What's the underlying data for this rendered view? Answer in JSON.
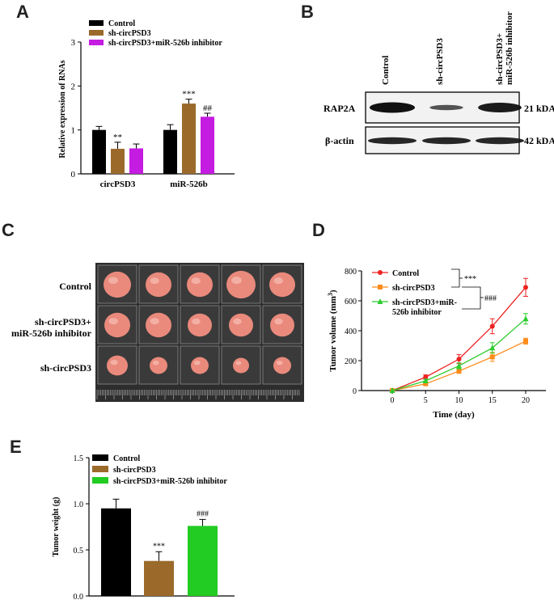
{
  "panels": {
    "a": "A",
    "b": "B",
    "c": "C",
    "d": "D",
    "e": "E"
  },
  "colors": {
    "control": "#000000",
    "sh": "#9b6a2b",
    "inhib_a": "#c41ce0",
    "inhib_e": "#22cc22",
    "line_control": "#ee2222",
    "line_sh": "#ff8c1a",
    "line_inhib": "#2ecc2e"
  },
  "blot": {
    "lanes": [
      "Control",
      "sh-circPSD3",
      "sh-circPSD3+\nmiR-526b inhibitor"
    ],
    "rows": [
      {
        "label": "RAP2A",
        "size": "21 kDA"
      },
      {
        "label": "β-actin",
        "size": "42 kDA"
      }
    ],
    "intensity_rap2a": [
      1.0,
      0.35,
      0.9
    ],
    "intensity_actin": [
      0.85,
      0.85,
      0.85
    ]
  },
  "photo": {
    "rows": [
      "Control",
      "sh-circPSD3+\nmiR-526b inhibitor",
      "sh-circPSD3"
    ],
    "tumor_counts": [
      5,
      5,
      5
    ]
  },
  "chart_data": [
    {
      "id": "A",
      "type": "bar",
      "ylabel": "Relative expression of RNAs",
      "ylim": [
        0,
        3
      ],
      "yticks": [
        0,
        1,
        2,
        3
      ],
      "categories": [
        "circPSD3",
        "miR-526b"
      ],
      "series": [
        {
          "name": "Control",
          "values": [
            1.0,
            1.0
          ],
          "err": [
            0.08,
            0.12
          ]
        },
        {
          "name": "sh-circPSD3",
          "values": [
            0.57,
            1.6
          ],
          "err": [
            0.15,
            0.1
          ]
        },
        {
          "name": "sh-circPSD3+miR-526b inhibitor",
          "values": [
            0.58,
            1.3
          ],
          "err": [
            0.1,
            0.08
          ]
        }
      ],
      "annotations": [
        {
          "series": 1,
          "category": 0,
          "text": "**"
        },
        {
          "series": 1,
          "category": 1,
          "text": "***"
        },
        {
          "series": 2,
          "category": 1,
          "text": "##"
        }
      ],
      "legend": "top-left"
    },
    {
      "id": "D",
      "type": "line",
      "xlabel": "Time (day)",
      "ylabel": "Tumor volume (mm",
      "ylabel_sup": "3",
      "ylabel_end": ")",
      "x": [
        0,
        5,
        10,
        15,
        20
      ],
      "xlim": [
        0,
        20
      ],
      "ylim": [
        0,
        800
      ],
      "yticks": [
        0,
        200,
        400,
        600,
        800
      ],
      "series": [
        {
          "name": "Control",
          "values": [
            0,
            90,
            210,
            430,
            690
          ],
          "err": [
            5,
            15,
            30,
            50,
            60
          ]
        },
        {
          "name": "sh-circPSD3",
          "values": [
            0,
            45,
            130,
            225,
            330
          ],
          "err": [
            5,
            10,
            15,
            30,
            20
          ]
        },
        {
          "name": "sh-circPSD3+miR-\n526b inhibitor",
          "values": [
            0,
            65,
            165,
            285,
            480
          ],
          "err": [
            5,
            10,
            20,
            35,
            35
          ]
        }
      ],
      "bracket_labels": [
        "***",
        "###"
      ],
      "legend": "top-left"
    },
    {
      "id": "E",
      "type": "bar",
      "ylabel": "Tumor weight (g)",
      "ylim": [
        0,
        1.5
      ],
      "yticks": [
        "0.0",
        "0.5",
        "1.0",
        "1.5"
      ],
      "categories": [
        "Control",
        "sh-circPSD3",
        "sh-circPSD3+miR-526b inhibitor"
      ],
      "values": [
        0.95,
        0.38,
        0.76
      ],
      "err": [
        0.1,
        0.1,
        0.07
      ],
      "annotations": [
        "",
        "***",
        "###"
      ],
      "legend_labels": [
        "Control",
        "sh-circPSD3",
        "sh-circPSD3+miR-526b inhibitor"
      ],
      "legend": "top-left"
    }
  ]
}
